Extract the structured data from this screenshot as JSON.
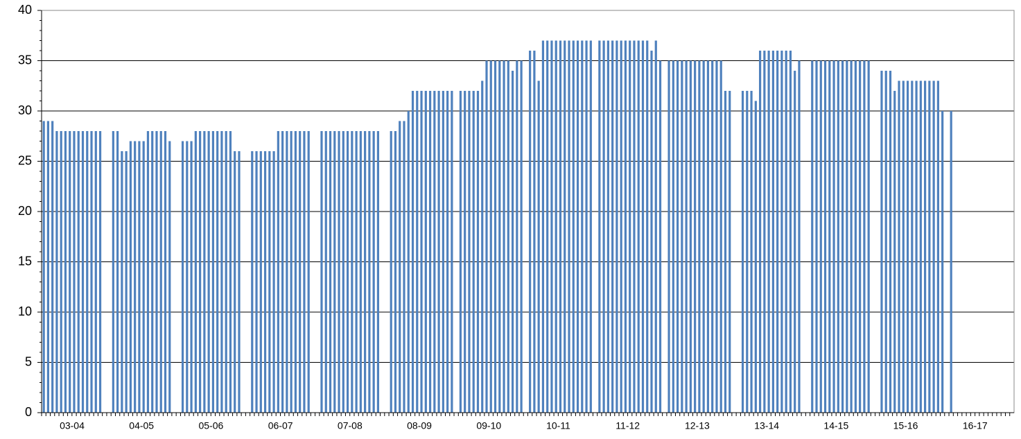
{
  "chart_data": {
    "type": "bar",
    "color": "#4f81bd",
    "grid": true,
    "ylim": [
      0,
      40
    ],
    "yticks": [
      0,
      5,
      10,
      15,
      20,
      25,
      30,
      35,
      40
    ],
    "categories": [
      null,
      null,
      null,
      null,
      null,
      null,
      null,
      "03-04",
      null,
      null,
      null,
      null,
      null,
      null,
      null,
      null,
      null,
      null,
      null,
      null,
      null,
      null,
      null,
      "04-05",
      null,
      null,
      null,
      null,
      null,
      null,
      null,
      null,
      null,
      null,
      null,
      null,
      null,
      null,
      null,
      "05-06",
      null,
      null,
      null,
      null,
      null,
      null,
      null,
      null,
      null,
      null,
      null,
      null,
      null,
      null,
      null,
      "06-07",
      null,
      null,
      null,
      null,
      null,
      null,
      null,
      null,
      null,
      null,
      null,
      null,
      null,
      null,
      null,
      "07-08",
      null,
      null,
      null,
      null,
      null,
      null,
      null,
      null,
      null,
      null,
      null,
      null,
      null,
      null,
      null,
      "08-09",
      null,
      null,
      null,
      null,
      null,
      null,
      null,
      null,
      null,
      null,
      null,
      null,
      null,
      null,
      null,
      "09-10",
      null,
      null,
      null,
      null,
      null,
      null,
      null,
      null,
      null,
      null,
      null,
      null,
      null,
      null,
      null,
      "10-11",
      null,
      null,
      null,
      null,
      null,
      null,
      null,
      null,
      null,
      null,
      null,
      null,
      null,
      null,
      null,
      "11-12",
      null,
      null,
      null,
      null,
      null,
      null,
      null,
      null,
      null,
      null,
      null,
      null,
      null,
      null,
      null,
      "12-13",
      null,
      null,
      null,
      null,
      null,
      null,
      null,
      null,
      null,
      null,
      null,
      null,
      null,
      null,
      null,
      "13-14",
      null,
      null,
      null,
      null,
      null,
      null,
      null,
      null,
      null,
      null,
      null,
      null,
      null,
      null,
      null,
      "14-15",
      null,
      null,
      null,
      null,
      null,
      null,
      null,
      null,
      null,
      null,
      null,
      null,
      null,
      null,
      null,
      "15-16",
      null,
      null,
      null,
      null,
      null,
      null,
      null,
      null,
      null,
      null,
      null,
      null,
      null,
      null,
      null,
      "16-17",
      null,
      null,
      null,
      null,
      null,
      null,
      null,
      null
    ],
    "values": [
      29,
      29,
      29,
      28,
      28,
      28,
      28,
      28,
      28,
      28,
      28,
      28,
      28,
      28,
      null,
      null,
      28,
      28,
      26,
      26,
      27,
      27,
      27,
      27,
      28,
      28,
      28,
      28,
      28,
      27,
      null,
      null,
      27,
      27,
      27,
      28,
      28,
      28,
      28,
      28,
      28,
      28,
      28,
      28,
      26,
      26,
      null,
      null,
      26,
      26,
      26,
      26,
      26,
      26,
      28,
      28,
      28,
      28,
      28,
      28,
      28,
      28,
      null,
      null,
      28,
      28,
      28,
      28,
      28,
      28,
      28,
      28,
      28,
      28,
      28,
      28,
      28,
      28,
      null,
      null,
      28,
      28,
      29,
      29,
      30,
      32,
      32,
      32,
      32,
      32,
      32,
      32,
      32,
      32,
      32,
      null,
      32,
      32,
      32,
      32,
      32,
      33,
      35,
      35,
      35,
      35,
      35,
      35,
      34,
      35,
      35,
      null,
      36,
      36,
      33,
      37,
      37,
      37,
      37,
      37,
      37,
      37,
      37,
      37,
      37,
      37,
      37,
      null,
      37,
      37,
      37,
      37,
      37,
      37,
      37,
      37,
      37,
      37,
      37,
      37,
      36,
      37,
      35,
      null,
      35,
      35,
      35,
      35,
      35,
      35,
      35,
      35,
      35,
      35,
      35,
      35,
      35,
      32,
      32,
      null,
      null,
      32,
      32,
      32,
      31,
      36,
      36,
      36,
      36,
      36,
      36,
      36,
      36,
      34,
      35,
      null,
      null,
      35,
      35,
      35,
      35,
      35,
      35,
      35,
      35,
      35,
      35,
      35,
      35,
      35,
      35,
      null,
      null,
      34,
      34,
      34,
      32,
      33,
      33,
      33,
      33,
      33,
      33,
      33,
      33,
      33,
      33,
      30,
      null,
      30,
      null,
      null,
      null,
      null,
      null,
      null,
      null,
      null,
      null,
      null,
      null,
      null,
      null,
      null
    ]
  }
}
